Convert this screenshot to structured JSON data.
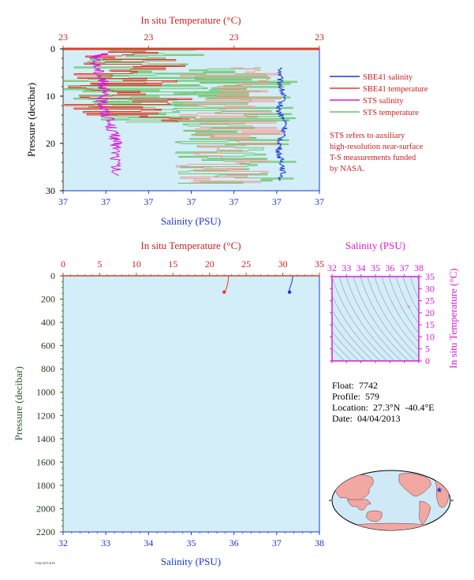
{
  "chart_data": [
    {
      "type": "line",
      "name": "near-surface",
      "top_axis": {
        "label": "In situ Temperature (°C)",
        "ticks": [
          "23",
          "23",
          "23",
          "23"
        ]
      },
      "bottom_axis": {
        "label": "Salinity (PSU)",
        "ticks": [
          "37",
          "37",
          "37",
          "37",
          "37",
          "37",
          "37"
        ]
      },
      "ylabel": "Pressure (decibar)",
      "yticks": [
        "0",
        "10",
        "20",
        "30"
      ],
      "ylim": [
        0,
        30
      ],
      "legend": [
        {
          "label": "SBE41 salinity",
          "color": "#1a37d6"
        },
        {
          "label": "SBE41 temperature",
          "color": "#e53a2a"
        },
        {
          "label": "STS salinity",
          "color": "#d81ad8"
        },
        {
          "label": "STS temperature",
          "color": "#6cc46c"
        }
      ],
      "note": [
        "STS refers to auxiliary",
        "high-resolution near-surface",
        "T-S measurements funded",
        "by NASA."
      ],
      "series": [
        {
          "name": "SBE41 salinity",
          "color": "#1a37d6",
          "x_frac": [
            0.85,
            0.845,
            0.86,
            0.84,
            0.87,
            0.85,
            0.84,
            0.86,
            0.85
          ],
          "y": [
            4,
            7,
            10,
            13,
            16,
            19,
            22,
            25,
            28
          ]
        },
        {
          "name": "STS salinity",
          "color": "#d81ad8",
          "x_frac": [
            0.16,
            0.12,
            0.15,
            0.16,
            0.15,
            0.17,
            0.2,
            0.21,
            0.2
          ],
          "y": [
            1,
            2,
            6,
            8,
            11,
            14,
            18,
            21,
            27
          ]
        }
      ]
    },
    {
      "type": "line",
      "name": "full-profile",
      "top_axis": {
        "label": "In situ Temperature (°C)",
        "ticks": [
          "0",
          "5",
          "10",
          "15",
          "20",
          "25",
          "30",
          "35"
        ],
        "range": [
          0,
          35
        ]
      },
      "bottom_axis": {
        "label": "Salinity (PSU)",
        "ticks": [
          "32",
          "33",
          "34",
          "35",
          "36",
          "37",
          "38"
        ],
        "range": [
          32,
          38
        ]
      },
      "ylabel": "Pressure (decibar)",
      "yticks": [
        "0",
        "200",
        "400",
        "600",
        "800",
        "1000",
        "1200",
        "1400",
        "1600",
        "1800",
        "2000",
        "2200"
      ],
      "ylim": [
        0,
        2200
      ],
      "temperature": {
        "color": "#e53a2a",
        "t": [
          22.6,
          22.5,
          22.3,
          22.0
        ],
        "p": [
          0,
          60,
          110,
          140
        ]
      },
      "salinity": {
        "color": "#1a37d6",
        "s": [
          37.38,
          37.35,
          37.3,
          37.3
        ],
        "p": [
          0,
          60,
          110,
          140
        ]
      }
    },
    {
      "type": "scatter",
      "name": "T-S diagram",
      "xlabel": "Salinity (PSU)",
      "xticks": [
        "32",
        "33",
        "34",
        "35",
        "36",
        "37",
        "38"
      ],
      "ylabel": "In situ Temperature (°C)",
      "yticks": [
        "0",
        "5",
        "10",
        "15",
        "20",
        "25",
        "30",
        "35"
      ],
      "xlim": [
        32,
        38
      ],
      "ylim": [
        0,
        35
      ],
      "points": [
        {
          "s": 37.3,
          "t": 22.4
        }
      ]
    }
  ],
  "info": {
    "float": "Float:  7742",
    "profile": "Profile:  579",
    "location": "Location:  27.3°N  -40.4°E",
    "date": "Date:  04/04/2013"
  },
  "map": {
    "marker": {
      "lat": 27.3,
      "lon": -40.4
    }
  },
  "footer": "7742 STS 579"
}
